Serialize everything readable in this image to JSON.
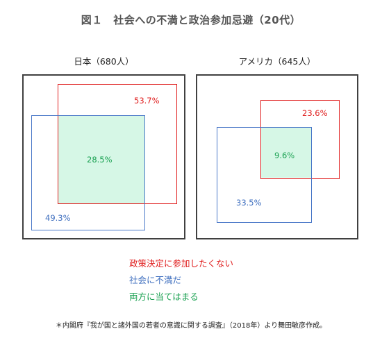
{
  "title": "図１　社会への不満と政治参加忌避（20代）",
  "panels": [
    {
      "label": "日本（680人）",
      "red_value": "53.7%",
      "blue_value": "49.3%",
      "overlap_value": "28.5%"
    },
    {
      "label": "アメリカ（645人）",
      "red_value": "23.6%",
      "blue_value": "33.5%",
      "overlap_value": "9.6%"
    }
  ],
  "legend": {
    "red": "政策決定に参加したくない",
    "blue": "社会に不満だ",
    "green": "両方に当てはまる"
  },
  "colors": {
    "red": "#e02020",
    "blue": "#4a78c8",
    "green": "#18a050",
    "overlap_fill": "#d6f7e6"
  },
  "footnote": "＊内閣府『我が国と諸外国の若者の意識に関する調査』（2018年）より舞田敏彦作成。"
}
